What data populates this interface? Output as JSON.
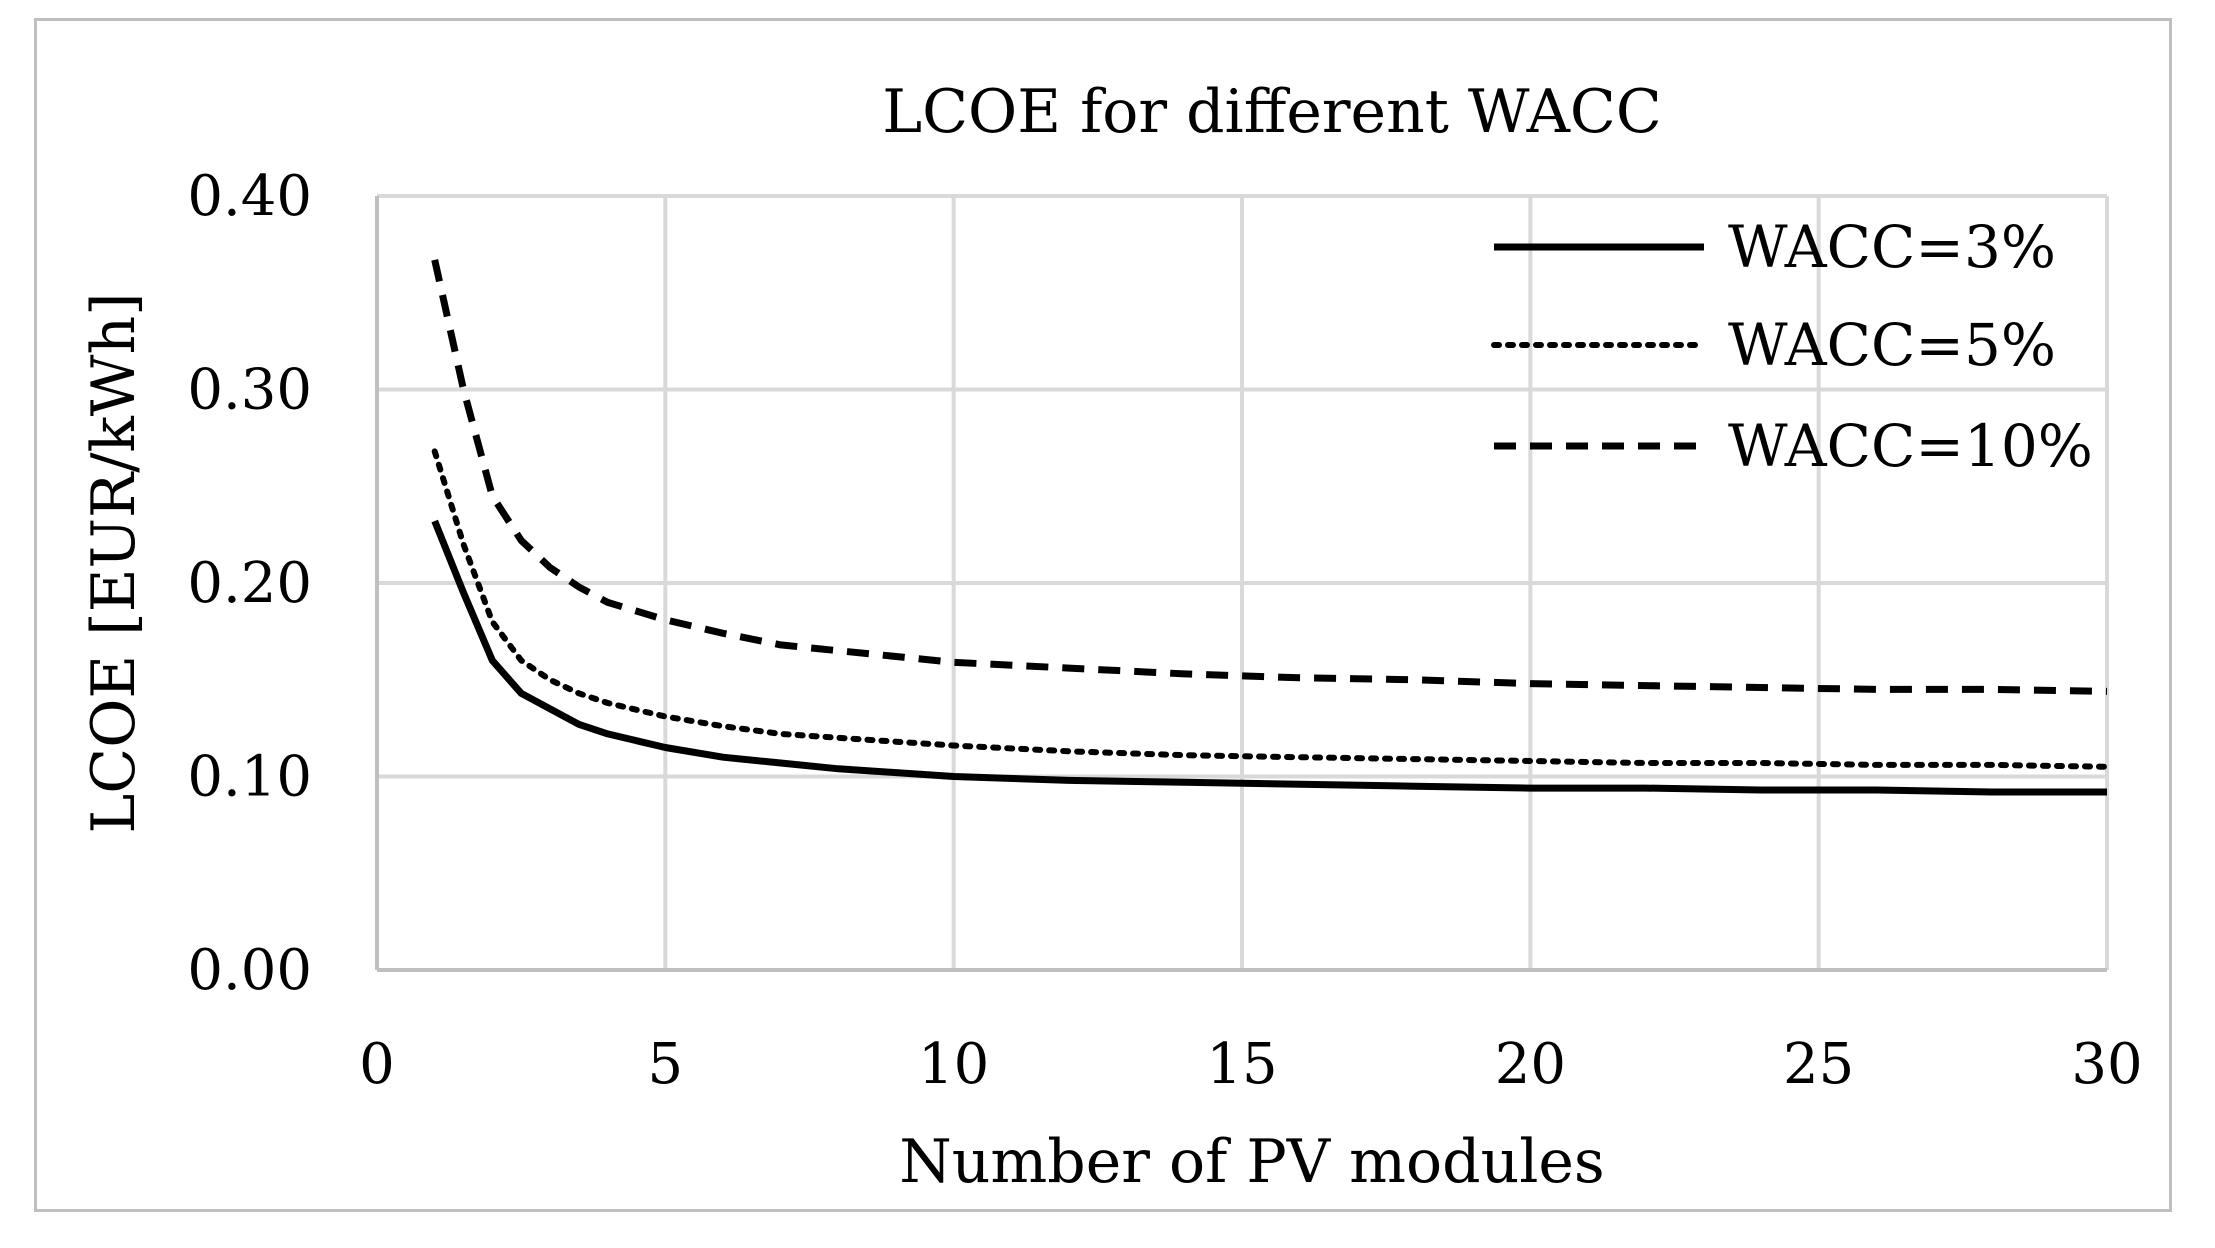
{
  "chart_data": {
    "type": "line",
    "title": "LCOE for different WACC",
    "xlabel": "Number of PV modules",
    "ylabel": "LCOE [EUR/kWh]",
    "xlim": [
      0,
      30
    ],
    "ylim": [
      0,
      0.4
    ],
    "xticks": [
      0,
      5,
      10,
      15,
      20,
      25,
      30
    ],
    "xtick_labels": [
      "0",
      "5",
      "10",
      "15",
      "20",
      "25",
      "30"
    ],
    "yticks": [
      0,
      0.1,
      0.2,
      0.3,
      0.4
    ],
    "ytick_labels": [
      "0.00",
      "0.10",
      "0.20",
      "0.30",
      "0.40"
    ],
    "grid": true,
    "legend_position": "top-right",
    "x": [
      1,
      1.5,
      2,
      2.5,
      3,
      3.5,
      4,
      5,
      6,
      7,
      8,
      9,
      10,
      12,
      14,
      16,
      18,
      20,
      22,
      24,
      26,
      28,
      30
    ],
    "series": [
      {
        "name": "WACC=3%",
        "style": "solid",
        "color": "#000000",
        "values": [
          0.232,
          0.195,
          0.16,
          0.143,
          0.135,
          0.127,
          0.122,
          0.115,
          0.11,
          0.107,
          0.104,
          0.102,
          0.1,
          0.098,
          0.097,
          0.096,
          0.095,
          0.094,
          0.094,
          0.093,
          0.093,
          0.092,
          0.092
        ]
      },
      {
        "name": "WACC=5%",
        "style": "dotted",
        "color": "#000000",
        "values": [
          0.268,
          0.22,
          0.18,
          0.16,
          0.15,
          0.143,
          0.138,
          0.131,
          0.126,
          0.122,
          0.12,
          0.118,
          0.116,
          0.113,
          0.111,
          0.11,
          0.109,
          0.108,
          0.107,
          0.107,
          0.106,
          0.106,
          0.105
        ]
      },
      {
        "name": "WACC=10%",
        "style": "dashed",
        "color": "#000000",
        "values": [
          0.367,
          0.3,
          0.245,
          0.222,
          0.208,
          0.198,
          0.19,
          0.181,
          0.174,
          0.168,
          0.165,
          0.162,
          0.159,
          0.156,
          0.153,
          0.151,
          0.15,
          0.148,
          0.147,
          0.146,
          0.145,
          0.145,
          0.144
        ]
      }
    ]
  }
}
